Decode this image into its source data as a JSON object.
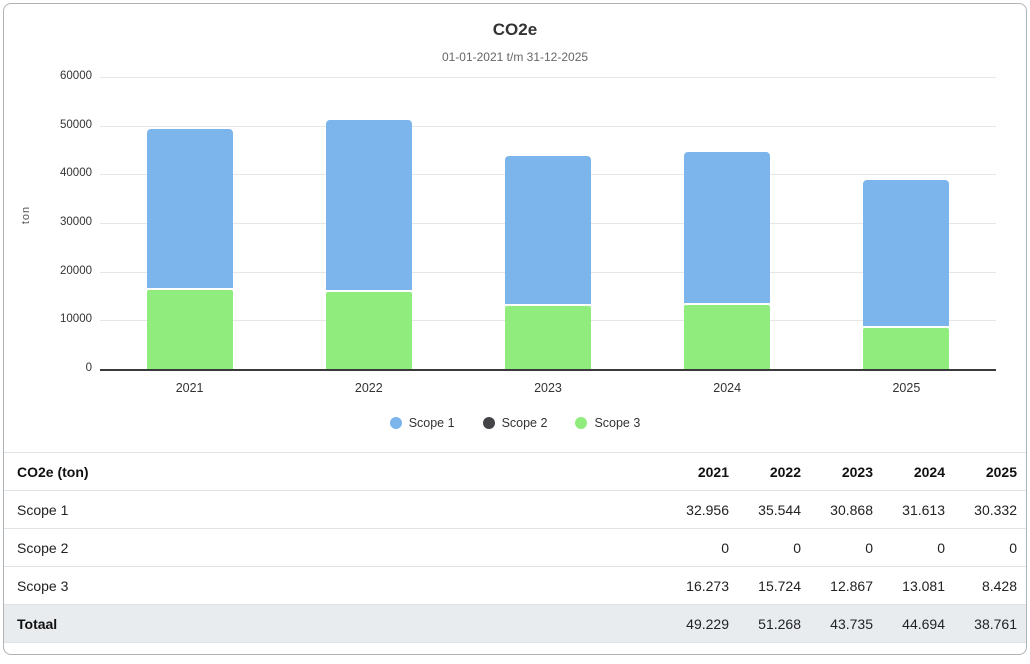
{
  "page": {
    "background": "#ffffff",
    "card_border_color": "#aeb3b8"
  },
  "chart_data": {
    "type": "bar",
    "stacked": true,
    "title": "CO2e",
    "subtitle": "01-01-2021 t/m 31-12-2025",
    "ylabel": "ton",
    "xlabel": "",
    "categories": [
      "2021",
      "2022",
      "2023",
      "2024",
      "2025"
    ],
    "series": [
      {
        "name": "Scope 1",
        "color": "#7cb5ec",
        "values": [
          32956,
          35544,
          30868,
          31613,
          30332
        ]
      },
      {
        "name": "Scope 2",
        "color": "#434348",
        "values": [
          0,
          0,
          0,
          0,
          0
        ]
      },
      {
        "name": "Scope 3",
        "color": "#90ed7d",
        "values": [
          16273,
          15724,
          12867,
          13081,
          8428
        ]
      }
    ],
    "stack_order_top_to_bottom": [
      "Scope 1",
      "Scope 2",
      "Scope 3"
    ],
    "ylim": [
      0,
      60000
    ],
    "ytick_step": 10000,
    "ytick_labels": [
      "0",
      "10000",
      "20000",
      "30000",
      "40000",
      "50000",
      "60000"
    ],
    "grid": "horizontal",
    "legend_position": "bottom-center",
    "gridline_color": "#e6e6e6",
    "axis_line_color": "#3a3a3a"
  },
  "table": {
    "header": [
      "CO2e (ton)",
      "2021",
      "2022",
      "2023",
      "2024",
      "2025"
    ],
    "rows": [
      {
        "label": "Scope 1",
        "values": [
          "32.956",
          "35.544",
          "30.868",
          "31.613",
          "30.332"
        ],
        "bold_label": false,
        "highlight": false
      },
      {
        "label": "Scope 2",
        "values": [
          "0",
          "0",
          "0",
          "0",
          "0"
        ],
        "bold_label": false,
        "highlight": false
      },
      {
        "label": "Scope 3",
        "values": [
          "16.273",
          "15.724",
          "12.867",
          "13.081",
          "8.428"
        ],
        "bold_label": false,
        "highlight": false
      },
      {
        "label": "Totaal",
        "values": [
          "49.229",
          "51.268",
          "43.735",
          "44.694",
          "38.761"
        ],
        "bold_label": true,
        "highlight": true
      }
    ],
    "highlight_row_bg": "#e9ecef"
  }
}
